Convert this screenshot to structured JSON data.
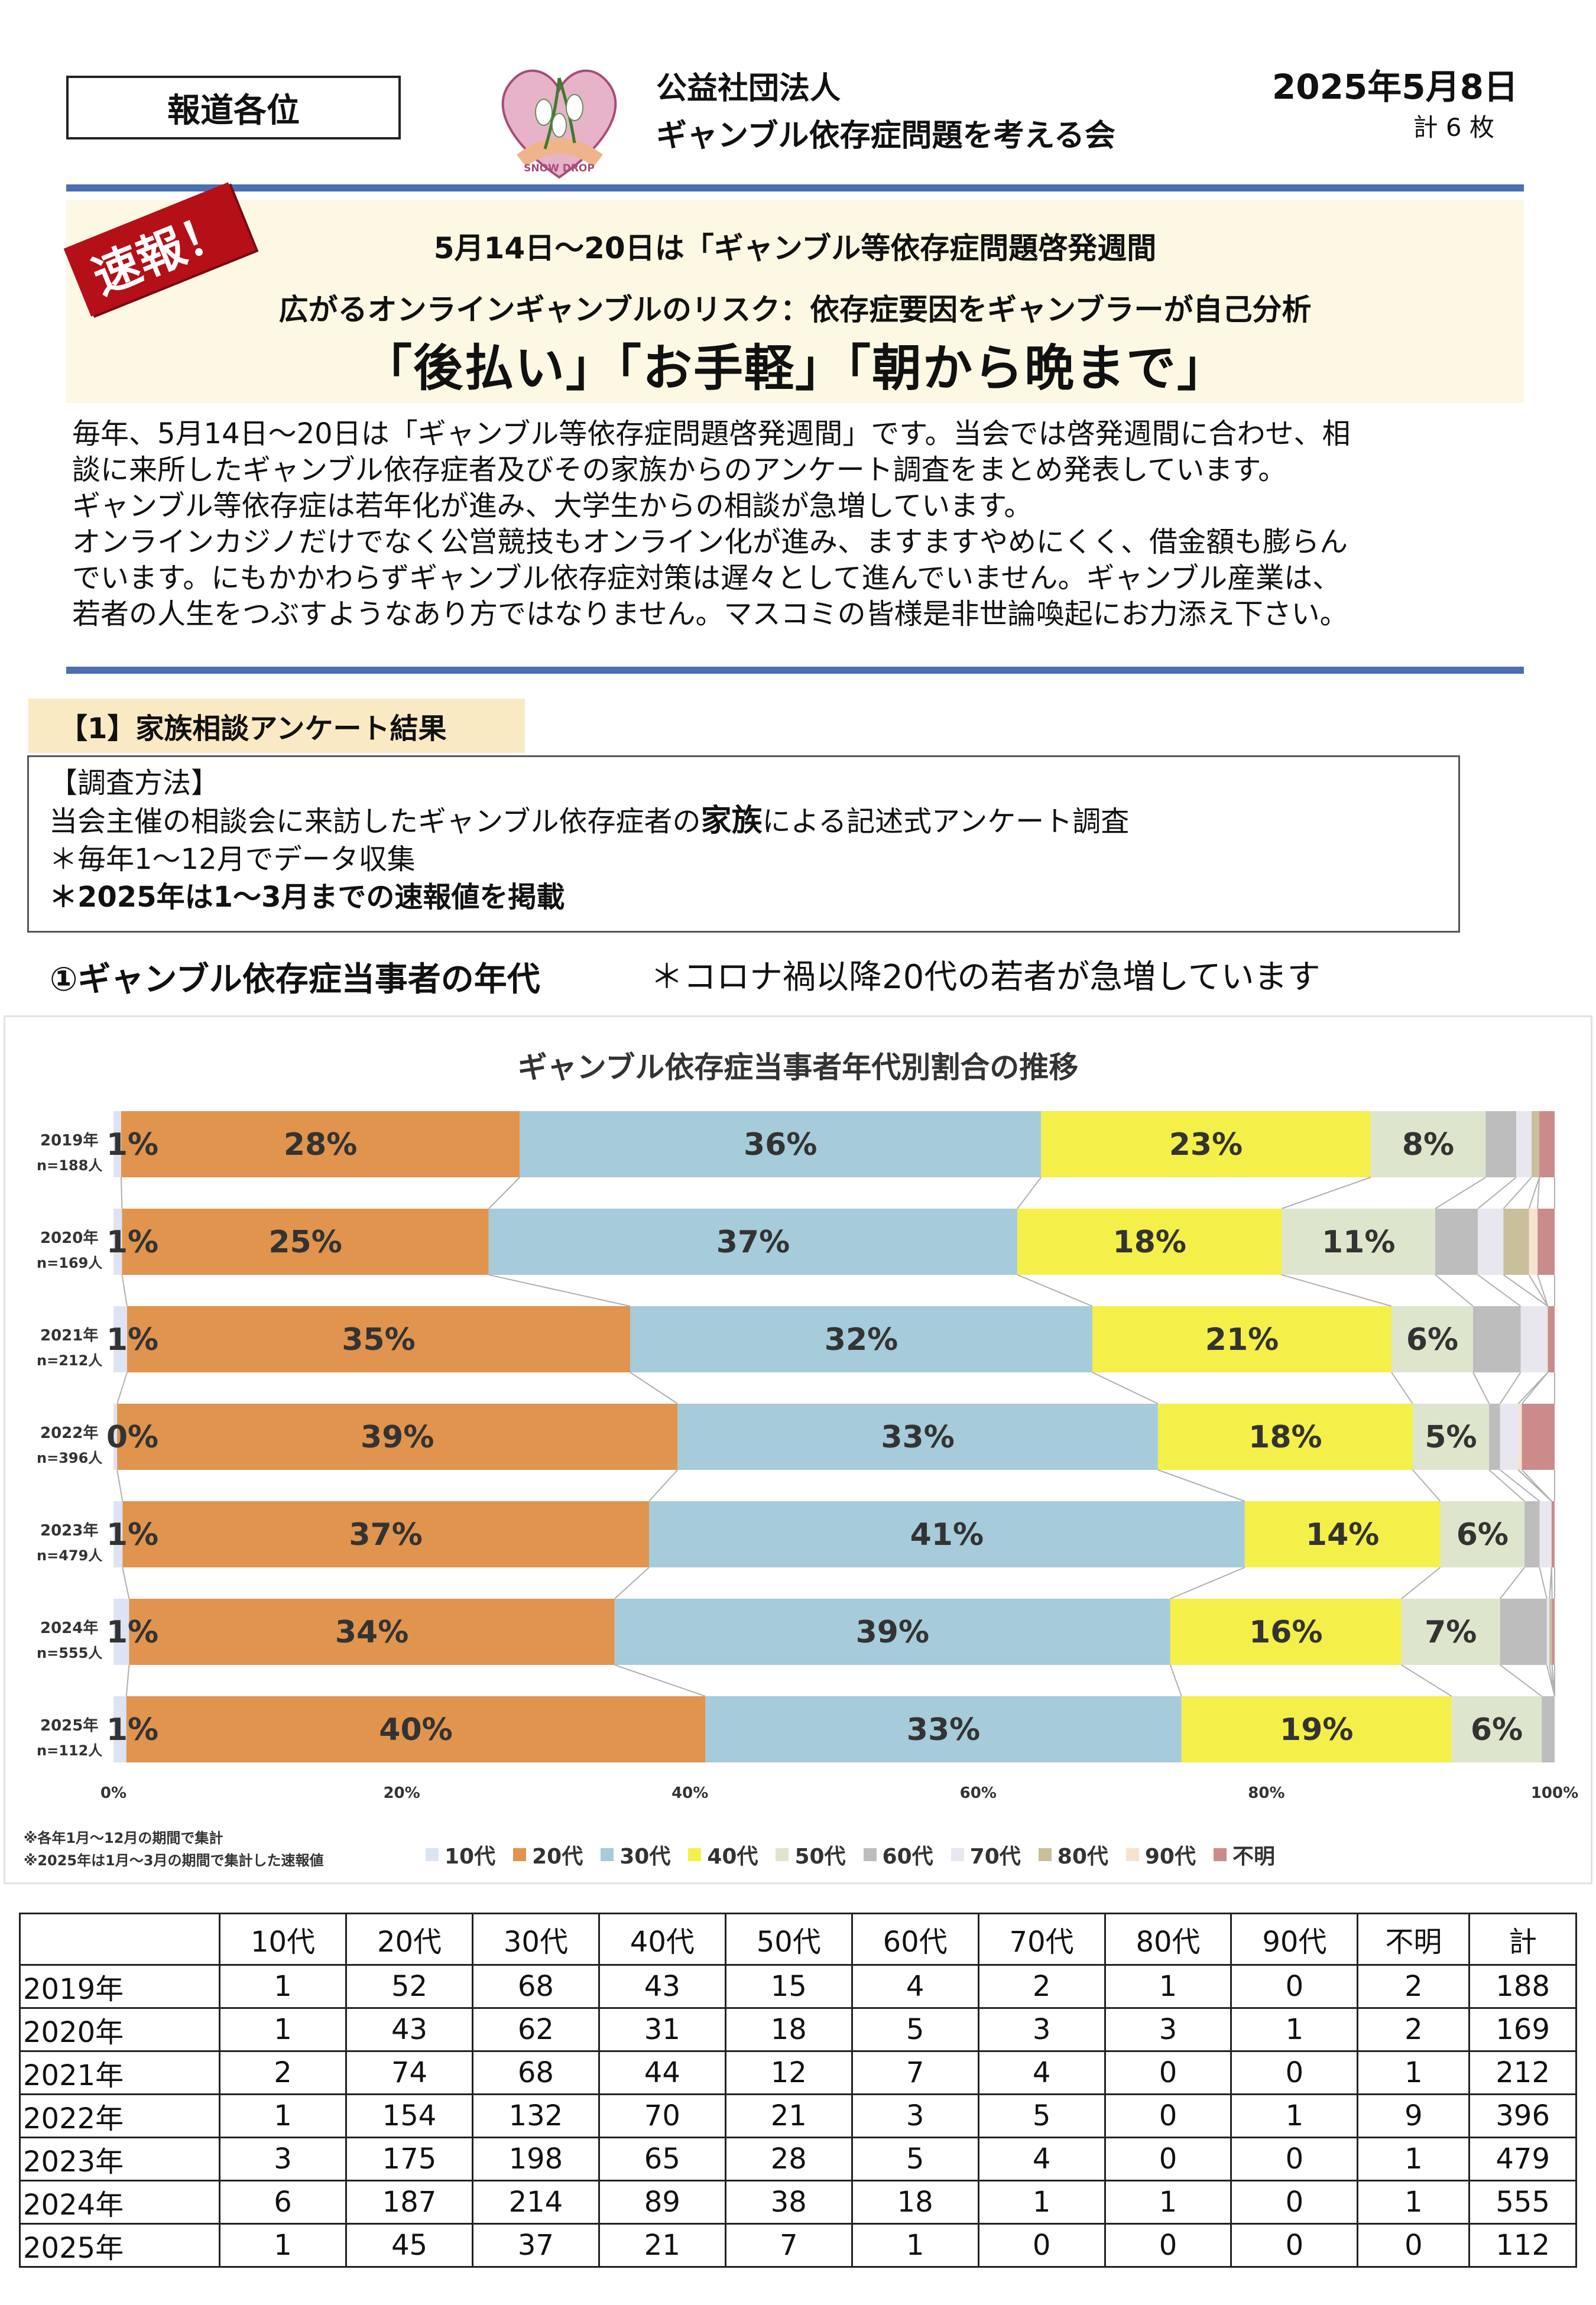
{
  "header": {
    "recipient": "報道各位",
    "org_line1": "公益社団法人",
    "org_line2": "ギャンブル依存症問題を考える会",
    "logo_text": "SNOW DROP",
    "date": "2025年5月8日",
    "pages": "計 6 枚"
  },
  "banner": {
    "stamp": "速報！",
    "line1": "5月14日～20日は「ギャンブル等依存症問題啓発週間",
    "line2": "広がるオンラインギャンブルのリスク：依存症要因をギャンブラーが自己分析",
    "line3": "「後払い」「お手軽」「朝から晩まで」"
  },
  "intro": [
    "毎年、5月14日～20日は「ギャンブル等依存症問題啓発週間」です。当会では啓発週間に合わせ、相",
    "談に来所したギャンブル依存症者及びその家族からのアンケート調査をまとめ発表しています。",
    "ギャンブル等依存症は若年化が進み、大学生からの相談が急増しています。",
    "オンラインカジノだけでなく公営競技もオンライン化が進み、ますますやめにくく、借金額も膨らん",
    "でいます。にもかかわらずギャンブル依存症対策は遅々として進んでいません。ギャンブル産業は、",
    "若者の人生をつぶすようなあり方ではなりません。マスコミの皆様是非世論喚起にお力添え下さい。"
  ],
  "section1": {
    "title": "【1】家族相談アンケート結果",
    "method_title": "【調査方法】",
    "method_line1_pre": "当会主催の相談会に来訪したギャンブル依存症者の",
    "method_line1_em": "家族",
    "method_line1_post": "による記述式アンケート調査",
    "method_line2": "＊毎年1～12月でデータ収集",
    "method_line3": "＊2025年は1～3月までの速報値を掲載",
    "subhead": "①ギャンブル依存症当事者の年代",
    "subnote": "＊コロナ禍以降20代の若者が急増しています"
  },
  "chart_data": {
    "type": "bar",
    "stacked": "100%",
    "orientation": "horizontal",
    "title": "ギャンブル依存症当事者年代別割合の推移",
    "categories": [
      "2019年",
      "2020年",
      "2021年",
      "2022年",
      "2023年",
      "2024年",
      "2025年"
    ],
    "category_n": [
      "n=188人",
      "n=169人",
      "n=212人",
      "n=396人",
      "n=479人",
      "n=555人",
      "n=112人"
    ],
    "series": [
      {
        "name": "10代",
        "color": "#dde3f3",
        "values": [
          1,
          1,
          2,
          1,
          3,
          6,
          1
        ]
      },
      {
        "name": "20代",
        "color": "#e0944e",
        "values": [
          52,
          43,
          74,
          154,
          175,
          187,
          45
        ]
      },
      {
        "name": "30代",
        "color": "#a6cbda",
        "values": [
          68,
          62,
          68,
          132,
          198,
          214,
          37
        ]
      },
      {
        "name": "40代",
        "color": "#f5ef4a",
        "values": [
          43,
          31,
          44,
          70,
          65,
          89,
          21
        ]
      },
      {
        "name": "50代",
        "color": "#dde6cc",
        "values": [
          15,
          18,
          12,
          21,
          28,
          38,
          7
        ]
      },
      {
        "name": "60代",
        "color": "#bdbdbd",
        "values": [
          4,
          5,
          7,
          3,
          5,
          18,
          1
        ]
      },
      {
        "name": "70代",
        "color": "#e8e6ee",
        "values": [
          2,
          3,
          4,
          5,
          4,
          1,
          0
        ]
      },
      {
        "name": "80代",
        "color": "#c9bf9a",
        "values": [
          1,
          3,
          0,
          0,
          0,
          1,
          0
        ]
      },
      {
        "name": "90代",
        "color": "#f7e2d0",
        "values": [
          0,
          1,
          0,
          1,
          0,
          0,
          0
        ]
      },
      {
        "name": "不明",
        "color": "#cc8b8b",
        "values": [
          2,
          2,
          1,
          9,
          1,
          1,
          0
        ]
      }
    ],
    "data_labels": [
      [
        "1%",
        "28%",
        "36%",
        "23%",
        "8%"
      ],
      [
        "1%",
        "25%",
        "37%",
        "18%",
        "11%"
      ],
      [
        "1%",
        "35%",
        "32%",
        "21%",
        "6%"
      ],
      [
        "0%",
        "39%",
        "33%",
        "18%",
        "5%"
      ],
      [
        "1%",
        "37%",
        "41%",
        "14%",
        "6%"
      ],
      [
        "1%",
        "34%",
        "39%",
        "16%",
        "7%"
      ],
      [
        "1%",
        "40%",
        "33%",
        "19%",
        "6%"
      ]
    ],
    "x_ticks": [
      "0%",
      "20%",
      "40%",
      "60%",
      "80%",
      "100%"
    ],
    "xlim": [
      0,
      100
    ],
    "legend_position": "bottom",
    "notes": [
      "※各年1月～12月の期間で集計",
      "※2025年は1月～3月の期間で集計した速報値"
    ]
  },
  "table": {
    "headers": [
      "",
      "10代",
      "20代",
      "30代",
      "40代",
      "50代",
      "60代",
      "70代",
      "80代",
      "90代",
      "不明",
      "計"
    ],
    "rows": [
      [
        "2019年",
        "1",
        "52",
        "68",
        "43",
        "15",
        "4",
        "2",
        "1",
        "0",
        "2",
        "188"
      ],
      [
        "2020年",
        "1",
        "43",
        "62",
        "31",
        "18",
        "5",
        "3",
        "3",
        "1",
        "2",
        "169"
      ],
      [
        "2021年",
        "2",
        "74",
        "68",
        "44",
        "12",
        "7",
        "4",
        "0",
        "0",
        "1",
        "212"
      ],
      [
        "2022年",
        "1",
        "154",
        "132",
        "70",
        "21",
        "3",
        "5",
        "0",
        "1",
        "9",
        "396"
      ],
      [
        "2023年",
        "3",
        "175",
        "198",
        "65",
        "28",
        "5",
        "4",
        "0",
        "0",
        "1",
        "479"
      ],
      [
        "2024年",
        "6",
        "187",
        "214",
        "89",
        "38",
        "18",
        "1",
        "1",
        "0",
        "1",
        "555"
      ],
      [
        "2025年",
        "1",
        "45",
        "37",
        "21",
        "7",
        "1",
        "0",
        "0",
        "0",
        "0",
        "112"
      ]
    ]
  }
}
